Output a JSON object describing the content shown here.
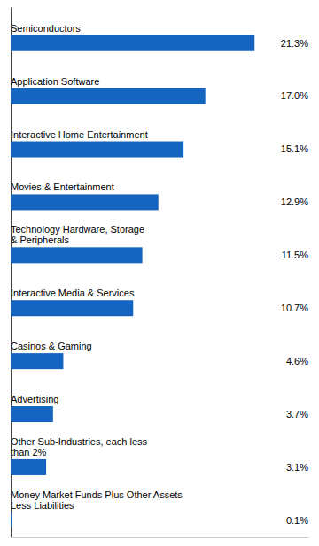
{
  "chart_data": {
    "type": "bar",
    "orientation": "horizontal",
    "categories": [
      "Semiconductors",
      "Application Software",
      "Interactive Home Entertainment",
      "Movies & Entertainment",
      "Technology Hardware, Storage\n& Peripherals",
      "Interactive Media & Services",
      "Casinos & Gaming",
      "Advertising",
      "Other Sub-Industries, each less\nthan 2%",
      "Money Market Funds Plus Other Assets\nLess Liabilities"
    ],
    "values": [
      21.3,
      17.0,
      15.1,
      12.9,
      11.5,
      10.7,
      4.6,
      3.7,
      3.1,
      0.1
    ],
    "value_labels": [
      "21.3%",
      "17.0%",
      "15.1%",
      "12.9%",
      "11.5%",
      "10.7%",
      "4.6%",
      "3.7%",
      "3.1%",
      "0.1%"
    ],
    "color": "#1565C0",
    "xlim": [
      0,
      26
    ],
    "data_labels": true,
    "tick_labels": false,
    "grid": false
  }
}
